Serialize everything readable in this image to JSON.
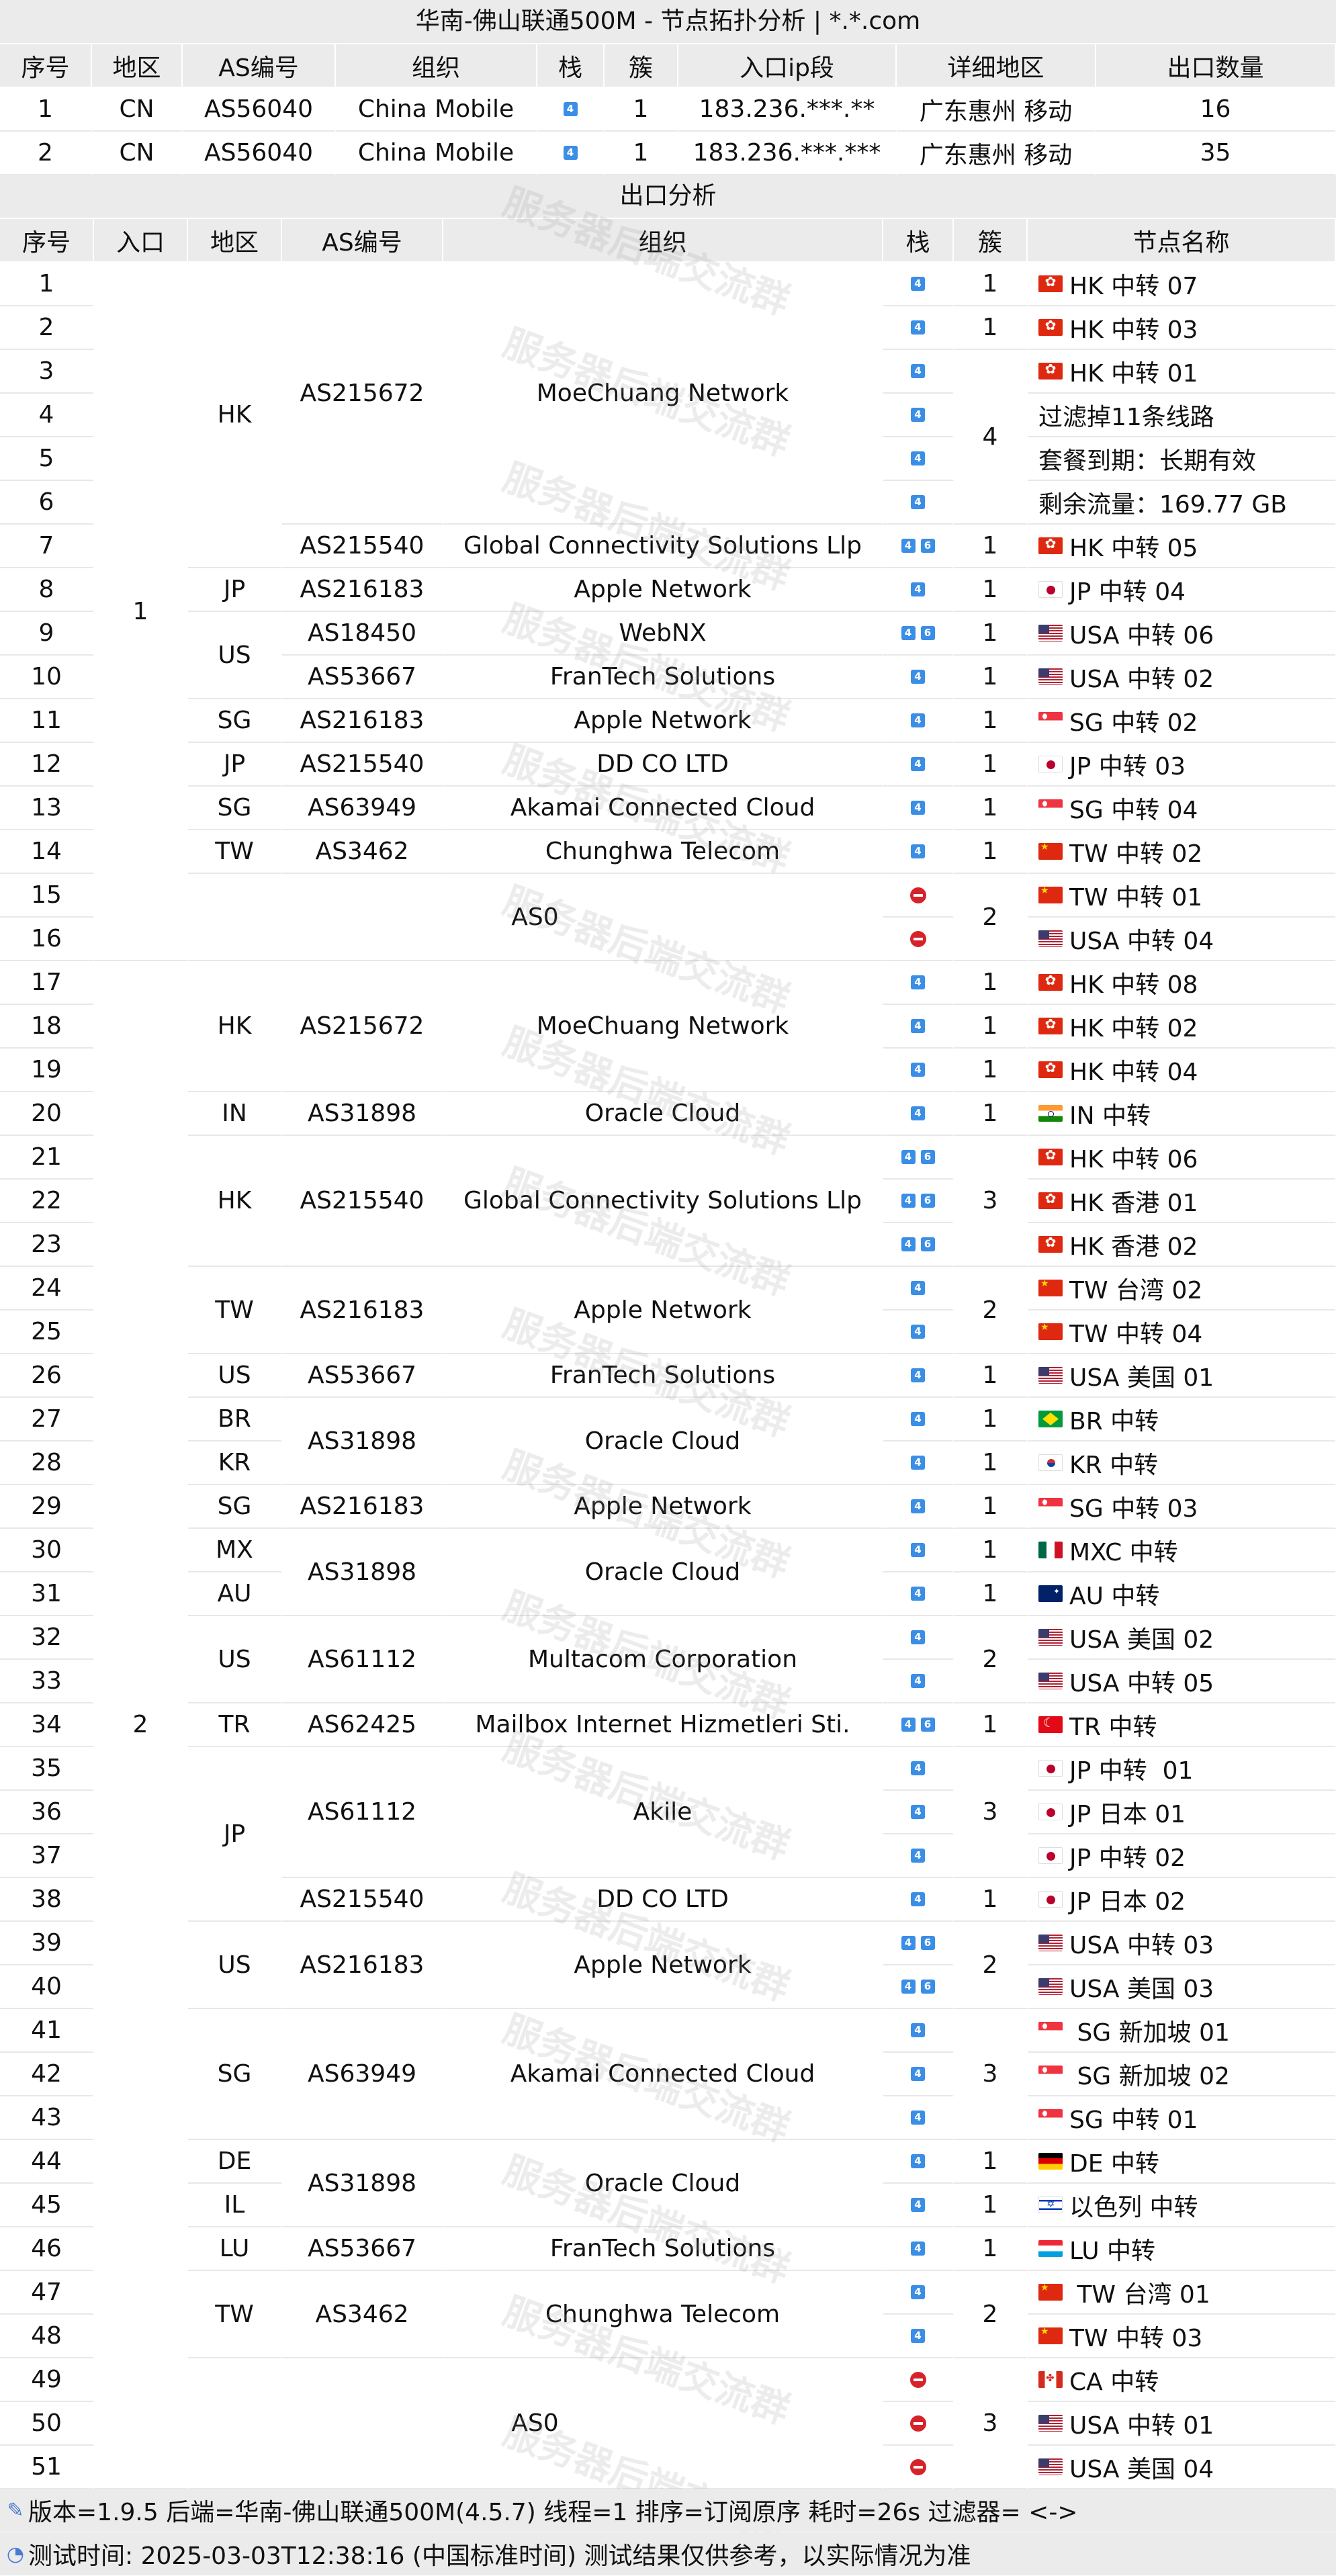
{
  "title": "华南-佛山联通500M - 节点拓扑分析 | *.*.com",
  "watermark": "服务器后端交流群",
  "entry_section": {
    "headers": [
      "序号",
      "地区",
      "AS编号",
      "组织",
      "栈",
      "簇",
      "入口ip段",
      "详细地区",
      "出口数量"
    ],
    "rows": [
      {
        "idx": "1",
        "region": "CN",
        "as": "AS56040",
        "org": "China Mobile",
        "stack": [
          "4"
        ],
        "cluster": "1",
        "ip": "183.236.***.**",
        "detail": "广东惠州 移动",
        "count": "16"
      },
      {
        "idx": "2",
        "region": "CN",
        "as": "AS56040",
        "org": "China Mobile",
        "stack": [
          "4"
        ],
        "cluster": "1",
        "ip": "183.236.***.***",
        "detail": "广东惠州 移动",
        "count": "35"
      }
    ]
  },
  "exit_section": {
    "title": "出口分析",
    "headers": [
      "序号",
      "入口",
      "地区",
      "AS编号",
      "组织",
      "栈",
      "簇",
      "节点名称"
    ],
    "nodes": [
      {
        "n": "1",
        "stack": [
          "4"
        ],
        "name": "HK 中转 07",
        "flag": "hk"
      },
      {
        "n": "2",
        "stack": [
          "4"
        ],
        "name": "HK 中转 03",
        "flag": "hk"
      },
      {
        "n": "3",
        "stack": [
          "4"
        ],
        "name": "HK 中转 01",
        "flag": "hk"
      },
      {
        "n": "4",
        "stack": [
          "4"
        ],
        "name": "过滤掉11条线路",
        "flag": ""
      },
      {
        "n": "5",
        "stack": [
          "4"
        ],
        "name": "套餐到期：长期有效",
        "flag": ""
      },
      {
        "n": "6",
        "stack": [
          "4"
        ],
        "name": "剩余流量：169.77 GB",
        "flag": ""
      },
      {
        "n": "7",
        "stack": [
          "4",
          "6"
        ],
        "name": "HK 中转 05",
        "flag": "hk"
      },
      {
        "n": "8",
        "stack": [
          "4"
        ],
        "name": "JP 中转 04",
        "flag": "jp"
      },
      {
        "n": "9",
        "stack": [
          "4",
          "6"
        ],
        "name": "USA 中转 06",
        "flag": "us"
      },
      {
        "n": "10",
        "stack": [
          "4"
        ],
        "name": "USA 中转 02",
        "flag": "us"
      },
      {
        "n": "11",
        "stack": [
          "4"
        ],
        "name": "SG 中转 02",
        "flag": "sg"
      },
      {
        "n": "12",
        "stack": [
          "4"
        ],
        "name": "JP 中转 03",
        "flag": "jp"
      },
      {
        "n": "13",
        "stack": [
          "4"
        ],
        "name": "SG 中转 04",
        "flag": "sg"
      },
      {
        "n": "14",
        "stack": [
          "4"
        ],
        "name": "TW 中转 02",
        "flag": "cn"
      },
      {
        "n": "15",
        "stack": [
          "x"
        ],
        "name": "TW 中转 01",
        "flag": "cn"
      },
      {
        "n": "16",
        "stack": [
          "x"
        ],
        "name": "USA 中转 04",
        "flag": "us"
      },
      {
        "n": "17",
        "stack": [
          "4"
        ],
        "name": "HK 中转 08",
        "flag": "hk"
      },
      {
        "n": "18",
        "stack": [
          "4"
        ],
        "name": "HK 中转 02",
        "flag": "hk"
      },
      {
        "n": "19",
        "stack": [
          "4"
        ],
        "name": "HK 中转 04",
        "flag": "hk"
      },
      {
        "n": "20",
        "stack": [
          "4"
        ],
        "name": "IN 中转",
        "flag": "in"
      },
      {
        "n": "21",
        "stack": [
          "4",
          "6"
        ],
        "name": "HK 中转 06",
        "flag": "hk"
      },
      {
        "n": "22",
        "stack": [
          "4",
          "6"
        ],
        "name": "HK 香港 01",
        "flag": "hk"
      },
      {
        "n": "23",
        "stack": [
          "4",
          "6"
        ],
        "name": "HK 香港 02",
        "flag": "hk"
      },
      {
        "n": "24",
        "stack": [
          "4"
        ],
        "name": "TW 台湾 02",
        "flag": "cn"
      },
      {
        "n": "25",
        "stack": [
          "4"
        ],
        "name": "TW 中转 04",
        "flag": "cn"
      },
      {
        "n": "26",
        "stack": [
          "4"
        ],
        "name": "USA 美国 01",
        "flag": "us"
      },
      {
        "n": "27",
        "stack": [
          "4"
        ],
        "name": "BR 中转",
        "flag": "br"
      },
      {
        "n": "28",
        "stack": [
          "4"
        ],
        "name": "KR 中转",
        "flag": "kr"
      },
      {
        "n": "29",
        "stack": [
          "4"
        ],
        "name": "SG 中转 03",
        "flag": "sg"
      },
      {
        "n": "30",
        "stack": [
          "4"
        ],
        "name": "MXC 中转",
        "flag": "mx"
      },
      {
        "n": "31",
        "stack": [
          "4"
        ],
        "name": "AU 中转",
        "flag": "au"
      },
      {
        "n": "32",
        "stack": [
          "4"
        ],
        "name": "USA 美国 02",
        "flag": "us"
      },
      {
        "n": "33",
        "stack": [
          "4"
        ],
        "name": "USA 中转 05",
        "flag": "us"
      },
      {
        "n": "34",
        "stack": [
          "4",
          "6"
        ],
        "name": "TR 中转",
        "flag": "tr"
      },
      {
        "n": "35",
        "stack": [
          "4"
        ],
        "name": "JP 中转  01",
        "flag": "jp"
      },
      {
        "n": "36",
        "stack": [
          "4"
        ],
        "name": "JP 日本 01",
        "flag": "jp"
      },
      {
        "n": "37",
        "stack": [
          "4"
        ],
        "name": "JP 中转 02",
        "flag": "jp"
      },
      {
        "n": "38",
        "stack": [
          "4"
        ],
        "name": "JP 日本 02",
        "flag": "jp"
      },
      {
        "n": "39",
        "stack": [
          "4",
          "6"
        ],
        "name": "USA 中转 03",
        "flag": "us"
      },
      {
        "n": "40",
        "stack": [
          "4",
          "6"
        ],
        "name": "USA 美国 03",
        "flag": "us"
      },
      {
        "n": "41",
        "stack": [
          "4"
        ],
        "name": " SG 新加坡 01",
        "flag": "sg"
      },
      {
        "n": "42",
        "stack": [
          "4"
        ],
        "name": " SG 新加坡 02",
        "flag": "sg"
      },
      {
        "n": "43",
        "stack": [
          "4"
        ],
        "name": "SG 中转 01",
        "flag": "sg"
      },
      {
        "n": "44",
        "stack": [
          "4"
        ],
        "name": "DE 中转",
        "flag": "de"
      },
      {
        "n": "45",
        "stack": [
          "4"
        ],
        "name": "以色列 中转",
        "flag": "il"
      },
      {
        "n": "46",
        "stack": [
          "4"
        ],
        "name": "LU 中转",
        "flag": "lu"
      },
      {
        "n": "47",
        "stack": [
          "4"
        ],
        "name": " TW 台湾 01",
        "flag": "cn"
      },
      {
        "n": "48",
        "stack": [
          "4"
        ],
        "name": "TW 中转 03",
        "flag": "cn"
      },
      {
        "n": "49",
        "stack": [
          "x"
        ],
        "name": "CA 中转",
        "flag": "ca"
      },
      {
        "n": "50",
        "stack": [
          "x"
        ],
        "name": "USA 中转 01",
        "flag": "us"
      },
      {
        "n": "51",
        "stack": [
          "x"
        ],
        "name": "USA 美国 04",
        "flag": "us"
      }
    ],
    "entry_groups": [
      {
        "from": 1,
        "to": 16,
        "label": "1"
      },
      {
        "from": 17,
        "to": 51,
        "label": "2"
      }
    ],
    "region_groups": [
      {
        "from": 1,
        "to": 7,
        "label": "HK"
      },
      {
        "from": 8,
        "to": 8,
        "label": "JP"
      },
      {
        "from": 9,
        "to": 10,
        "label": "US"
      },
      {
        "from": 11,
        "to": 11,
        "label": "SG"
      },
      {
        "from": 12,
        "to": 12,
        "label": "JP"
      },
      {
        "from": 13,
        "to": 13,
        "label": "SG"
      },
      {
        "from": 14,
        "to": 14,
        "label": "TW"
      },
      {
        "from": 15,
        "to": 16,
        "label": ""
      },
      {
        "from": 17,
        "to": 19,
        "label": "HK"
      },
      {
        "from": 20,
        "to": 20,
        "label": "IN"
      },
      {
        "from": 21,
        "to": 23,
        "label": "HK"
      },
      {
        "from": 24,
        "to": 25,
        "label": "TW"
      },
      {
        "from": 26,
        "to": 26,
        "label": "US"
      },
      {
        "from": 27,
        "to": 27,
        "label": "BR"
      },
      {
        "from": 28,
        "to": 28,
        "label": "KR"
      },
      {
        "from": 29,
        "to": 29,
        "label": "SG"
      },
      {
        "from": 30,
        "to": 30,
        "label": "MX"
      },
      {
        "from": 31,
        "to": 31,
        "label": "AU"
      },
      {
        "from": 32,
        "to": 33,
        "label": "US"
      },
      {
        "from": 34,
        "to": 34,
        "label": "TR"
      },
      {
        "from": 35,
        "to": 38,
        "label": "JP"
      },
      {
        "from": 39,
        "to": 40,
        "label": "US"
      },
      {
        "from": 41,
        "to": 43,
        "label": "SG"
      },
      {
        "from": 44,
        "to": 44,
        "label": "DE"
      },
      {
        "from": 45,
        "to": 45,
        "label": "IL"
      },
      {
        "from": 46,
        "to": 46,
        "label": "LU"
      },
      {
        "from": 47,
        "to": 48,
        "label": "TW"
      },
      {
        "from": 49,
        "to": 51,
        "label": ""
      }
    ],
    "as_groups": [
      {
        "from": 1,
        "to": 6,
        "as": "AS215672",
        "org": "MoeChuang Network"
      },
      {
        "from": 7,
        "to": 7,
        "as": "AS215540",
        "org": "Global Connectivity Solutions Llp"
      },
      {
        "from": 8,
        "to": 8,
        "as": "AS216183",
        "org": "Apple Network"
      },
      {
        "from": 9,
        "to": 9,
        "as": "AS18450",
        "org": "WebNX"
      },
      {
        "from": 10,
        "to": 10,
        "as": "AS53667",
        "org": "FranTech Solutions"
      },
      {
        "from": 11,
        "to": 11,
        "as": "AS216183",
        "org": "Apple Network"
      },
      {
        "from": 12,
        "to": 12,
        "as": "AS215540",
        "org": "DD CO LTD"
      },
      {
        "from": 13,
        "to": 13,
        "as": "AS63949",
        "org": "Akamai Connected Cloud"
      },
      {
        "from": 14,
        "to": 14,
        "as": "AS3462",
        "org": "Chunghwa Telecom"
      },
      {
        "from": 15,
        "to": 16,
        "as": "AS0",
        "org": ""
      },
      {
        "from": 17,
        "to": 19,
        "as": "AS215672",
        "org": "MoeChuang Network"
      },
      {
        "from": 20,
        "to": 20,
        "as": "AS31898",
        "org": "Oracle Cloud"
      },
      {
        "from": 21,
        "to": 23,
        "as": "AS215540",
        "org": "Global Connectivity Solutions Llp"
      },
      {
        "from": 24,
        "to": 25,
        "as": "AS216183",
        "org": "Apple Network"
      },
      {
        "from": 26,
        "to": 26,
        "as": "AS53667",
        "org": "FranTech Solutions"
      },
      {
        "from": 27,
        "to": 28,
        "as": "AS31898",
        "org": "Oracle Cloud"
      },
      {
        "from": 29,
        "to": 29,
        "as": "AS216183",
        "org": "Apple Network"
      },
      {
        "from": 30,
        "to": 31,
        "as": "AS31898",
        "org": "Oracle Cloud"
      },
      {
        "from": 32,
        "to": 33,
        "as": "AS61112",
        "org": "Multacom Corporation"
      },
      {
        "from": 34,
        "to": 34,
        "as": "AS62425",
        "org": "Mailbox Internet Hizmetleri Sti."
      },
      {
        "from": 35,
        "to": 37,
        "as": "AS61112",
        "org": "Akile"
      },
      {
        "from": 38,
        "to": 38,
        "as": "AS215540",
        "org": "DD CO LTD"
      },
      {
        "from": 39,
        "to": 40,
        "as": "AS216183",
        "org": "Apple Network"
      },
      {
        "from": 41,
        "to": 43,
        "as": "AS63949",
        "org": "Akamai Connected Cloud"
      },
      {
        "from": 44,
        "to": 45,
        "as": "AS31898",
        "org": "Oracle Cloud"
      },
      {
        "from": 46,
        "to": 46,
        "as": "AS53667",
        "org": "FranTech Solutions"
      },
      {
        "from": 47,
        "to": 48,
        "as": "AS3462",
        "org": "Chunghwa Telecom"
      },
      {
        "from": 49,
        "to": 51,
        "as": "AS0",
        "org": ""
      }
    ],
    "cluster_groups": [
      {
        "from": 1,
        "to": 1,
        "label": "1"
      },
      {
        "from": 2,
        "to": 2,
        "label": "1"
      },
      {
        "from": 3,
        "to": 6,
        "label": "4"
      },
      {
        "from": 7,
        "to": 7,
        "label": "1"
      },
      {
        "from": 8,
        "to": 8,
        "label": "1"
      },
      {
        "from": 9,
        "to": 9,
        "label": "1"
      },
      {
        "from": 10,
        "to": 10,
        "label": "1"
      },
      {
        "from": 11,
        "to": 11,
        "label": "1"
      },
      {
        "from": 12,
        "to": 12,
        "label": "1"
      },
      {
        "from": 13,
        "to": 13,
        "label": "1"
      },
      {
        "from": 14,
        "to": 14,
        "label": "1"
      },
      {
        "from": 15,
        "to": 16,
        "label": "2"
      },
      {
        "from": 17,
        "to": 17,
        "label": "1"
      },
      {
        "from": 18,
        "to": 18,
        "label": "1"
      },
      {
        "from": 19,
        "to": 19,
        "label": "1"
      },
      {
        "from": 20,
        "to": 20,
        "label": "1"
      },
      {
        "from": 21,
        "to": 23,
        "label": "3"
      },
      {
        "from": 24,
        "to": 25,
        "label": "2"
      },
      {
        "from": 26,
        "to": 26,
        "label": "1"
      },
      {
        "from": 27,
        "to": 27,
        "label": "1"
      },
      {
        "from": 28,
        "to": 28,
        "label": "1"
      },
      {
        "from": 29,
        "to": 29,
        "label": "1"
      },
      {
        "from": 30,
        "to": 30,
        "label": "1"
      },
      {
        "from": 31,
        "to": 31,
        "label": "1"
      },
      {
        "from": 32,
        "to": 33,
        "label": "2"
      },
      {
        "from": 34,
        "to": 34,
        "label": "1"
      },
      {
        "from": 35,
        "to": 37,
        "label": "3"
      },
      {
        "from": 38,
        "to": 38,
        "label": "1"
      },
      {
        "from": 39,
        "to": 40,
        "label": "2"
      },
      {
        "from": 41,
        "to": 43,
        "label": "3"
      },
      {
        "from": 44,
        "to": 44,
        "label": "1"
      },
      {
        "from": 45,
        "to": 45,
        "label": "1"
      },
      {
        "from": 46,
        "to": 46,
        "label": "1"
      },
      {
        "from": 47,
        "to": 48,
        "label": "2"
      },
      {
        "from": 49,
        "to": 51,
        "label": "3"
      }
    ]
  },
  "footer": {
    "line1": "版本=1.9.5  后端=华南-佛山联通500M(4.5.7)  线程=1  排序=订阅原序  耗时=26s   过滤器= <->",
    "line2": "测试时间: 2025-03-03T12:38:16 (中国标准时间)  测试结果仅供参考，以实际情况为准"
  }
}
